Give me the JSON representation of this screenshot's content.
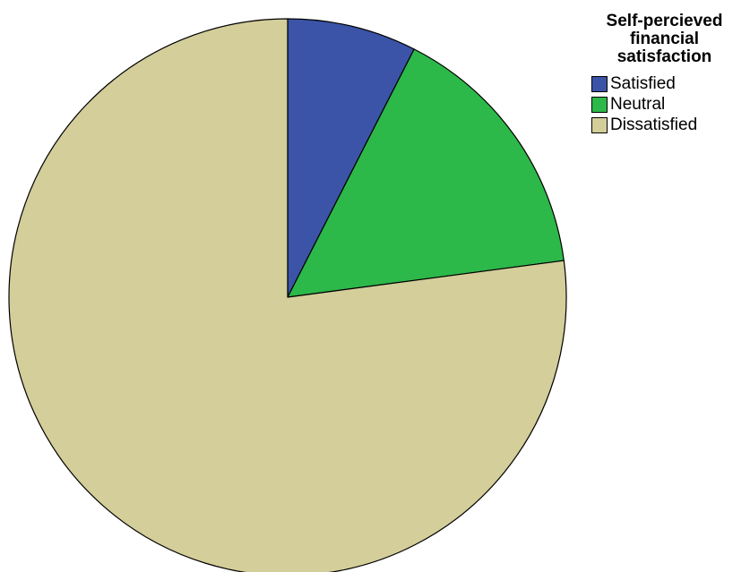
{
  "chart_data": {
    "type": "pie",
    "title": "",
    "legend": {
      "title": "Self-percieved financial satisfaction",
      "placement": "top-right"
    },
    "categories": [
      "Satisfied",
      "Neutral",
      "Dissatisfied"
    ],
    "values": [
      7.5,
      15.4,
      77.1
    ],
    "colors": [
      "#3b54a8",
      "#2db84a",
      "#d3ce9a"
    ],
    "edge_color": "#000000",
    "start_angle": "12 o'clock, clockwise"
  }
}
